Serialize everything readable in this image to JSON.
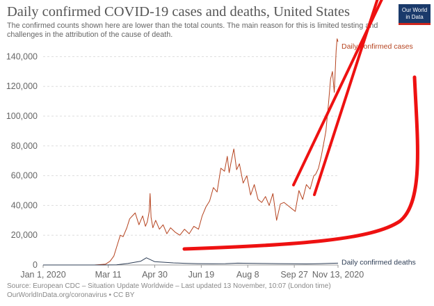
{
  "title": "Daily confirmed COVID-19 cases and deaths, United States",
  "subtitle": "The confirmed counts shown here are lower than the total counts. The main reason for this is limited testing and challenges in the attribution of the cause of death.",
  "logo": {
    "line1": "Our World",
    "line2": "in Data"
  },
  "source": {
    "line1": "Source: European CDC – Situation Update Worldwide – Last updated 13 November, 10:07 (London time)",
    "line2": "OurWorldInData.org/coronavirus • CC BY"
  },
  "colors": {
    "cases": "#b5431f",
    "deaths": "#2d3d55",
    "annotation": "#ee1111",
    "grid": "#dddddd"
  },
  "chart_data": {
    "type": "line",
    "x_type": "date",
    "xlim": [
      "2020-01-01",
      "2020-11-13"
    ],
    "ylim": [
      0,
      150000
    ],
    "y_ticks": [
      0,
      20000,
      40000,
      60000,
      80000,
      100000,
      120000,
      140000
    ],
    "y_tick_labels": [
      "0",
      "20,000",
      "40,000",
      "60,000",
      "80,000",
      "100,000",
      "120,000",
      "140,000"
    ],
    "x_ticks": [
      "2020-01-01",
      "2020-03-11",
      "2020-04-30",
      "2020-06-19",
      "2020-08-08",
      "2020-09-27",
      "2020-11-13"
    ],
    "x_tick_labels": [
      "Jan 1, 2020",
      "Mar 11",
      "Apr 30",
      "Jun 19",
      "Aug 8",
      "Sep 27",
      "Nov 13, 2020"
    ],
    "grid": "horizontal dashed",
    "series": [
      {
        "name": "Daily confirmed cases",
        "color": "#b5431f",
        "x": [
          "2020-01-01",
          "2020-02-25",
          "2020-03-08",
          "2020-03-13",
          "2020-03-17",
          "2020-03-21",
          "2020-03-24",
          "2020-03-27",
          "2020-03-31",
          "2020-04-03",
          "2020-04-06",
          "2020-04-09",
          "2020-04-11",
          "2020-04-13",
          "2020-04-15",
          "2020-04-17",
          "2020-04-20",
          "2020-04-22",
          "2020-04-24",
          "2020-04-25",
          "2020-04-26",
          "2020-04-28",
          "2020-05-01",
          "2020-05-05",
          "2020-05-09",
          "2020-05-13",
          "2020-05-17",
          "2020-05-22",
          "2020-05-27",
          "2020-06-01",
          "2020-06-06",
          "2020-06-11",
          "2020-06-16",
          "2020-06-20",
          "2020-06-24",
          "2020-06-28",
          "2020-07-02",
          "2020-07-06",
          "2020-07-10",
          "2020-07-14",
          "2020-07-17",
          "2020-07-19",
          "2020-07-21",
          "2020-07-24",
          "2020-07-27",
          "2020-07-30",
          "2020-08-03",
          "2020-08-07",
          "2020-08-11",
          "2020-08-15",
          "2020-08-19",
          "2020-08-23",
          "2020-08-27",
          "2020-08-31",
          "2020-09-04",
          "2020-09-08",
          "2020-09-12",
          "2020-09-16",
          "2020-09-20",
          "2020-09-24",
          "2020-09-28",
          "2020-10-02",
          "2020-10-06",
          "2020-10-10",
          "2020-10-14",
          "2020-10-18",
          "2020-10-20",
          "2020-10-23",
          "2020-10-26",
          "2020-10-29",
          "2020-10-31",
          "2020-11-03",
          "2020-11-05",
          "2020-11-07",
          "2020-11-09",
          "2020-11-11",
          "2020-11-12",
          "2020-11-13"
        ],
        "y": [
          0,
          0,
          500,
          2500,
          6000,
          14000,
          20000,
          19000,
          25000,
          31000,
          33000,
          35000,
          31000,
          27000,
          30000,
          33000,
          26000,
          29000,
          36000,
          48000,
          32000,
          25000,
          30000,
          24000,
          27000,
          21000,
          25000,
          22000,
          20000,
          24000,
          21000,
          26000,
          24000,
          33000,
          39000,
          43000,
          52000,
          49000,
          65000,
          63000,
          73000,
          62000,
          69000,
          78000,
          64000,
          68000,
          55000,
          60000,
          47000,
          54000,
          44000,
          42000,
          46000,
          40000,
          48000,
          30000,
          41000,
          42000,
          40000,
          38000,
          36000,
          50000,
          44000,
          54000,
          51000,
          60000,
          61000,
          65000,
          73000,
          83000,
          90000,
          110000,
          125000,
          130000,
          116000,
          144000,
          152000,
          150000
        ]
      },
      {
        "name": "Daily confirmed deaths",
        "color": "#2d3d55",
        "x": [
          "2020-01-01",
          "2020-03-05",
          "2020-03-20",
          "2020-04-01",
          "2020-04-10",
          "2020-04-15",
          "2020-04-21",
          "2020-04-30",
          "2020-05-10",
          "2020-05-20",
          "2020-06-01",
          "2020-06-15",
          "2020-07-01",
          "2020-07-15",
          "2020-07-28",
          "2020-08-10",
          "2020-08-25",
          "2020-09-10",
          "2020-09-25",
          "2020-10-10",
          "2020-10-25",
          "2020-11-05",
          "2020-11-13"
        ],
        "y": [
          0,
          0,
          100,
          1000,
          2000,
          2500,
          4800,
          2200,
          1800,
          1400,
          1100,
          900,
          800,
          900,
          1200,
          1100,
          1000,
          900,
          800,
          700,
          900,
          1100,
          1200
        ]
      }
    ]
  }
}
